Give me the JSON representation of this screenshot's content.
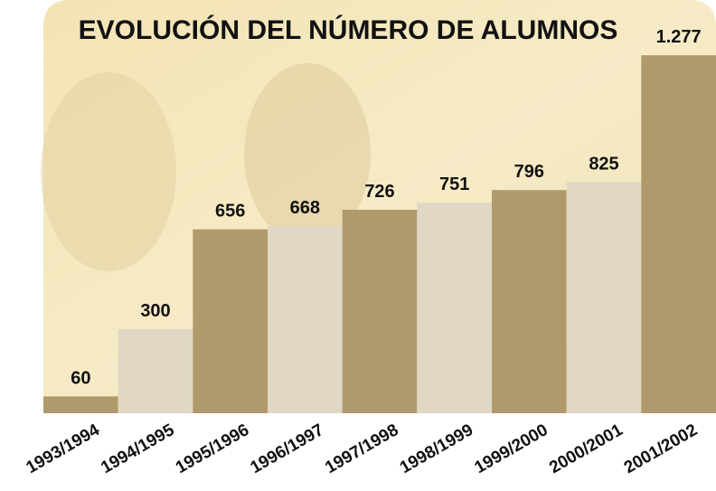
{
  "chart_data": {
    "type": "bar",
    "title": "EVOLUCIÓN DEL NÚMERO DE ALUMNOS",
    "categories": [
      "1993/1994",
      "1994/1995",
      "1995/1996",
      "1996/1997",
      "1997/1998",
      "1998/1999",
      "1999/2000",
      "2000/2001",
      "2001/2002"
    ],
    "values": [
      60,
      300,
      656,
      668,
      726,
      751,
      796,
      825,
      1277
    ],
    "value_labels": [
      "60",
      "300",
      "656",
      "668",
      "726",
      "751",
      "796",
      "825",
      "1.277"
    ],
    "colors": [
      "#b09a6c",
      "#e0d8c5",
      "#b09a6c",
      "#e0d8c5",
      "#b09a6c",
      "#e0d8c5",
      "#b09a6c",
      "#e0d8c5",
      "#b09a6c"
    ],
    "ylim": [
      0,
      1300
    ]
  }
}
